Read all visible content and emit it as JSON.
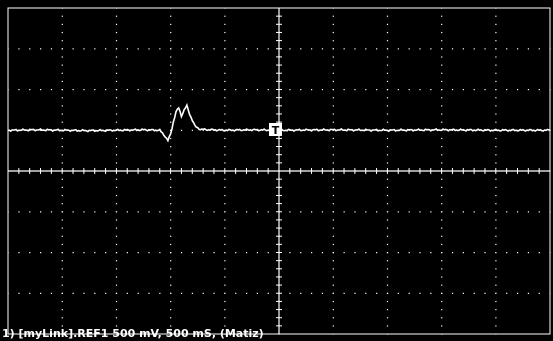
{
  "screen": {
    "background": "#000000",
    "trace_color": "#ffffff",
    "grid_color": "#ffffff",
    "divisions": {
      "horizontal": 10,
      "vertical": 8
    }
  },
  "trigger_marker": {
    "label": "T"
  },
  "status": {
    "text": "1) [myLink].REF1  500 mV,  500 mS, (Matiz)"
  },
  "waveform": {
    "description_units": "divisions",
    "samples": [
      [
        0.0,
        0.0
      ],
      [
        0.5,
        0.01
      ],
      [
        1.0,
        0.0
      ],
      [
        1.5,
        -0.01
      ],
      [
        2.0,
        0.0
      ],
      [
        2.5,
        0.01
      ],
      [
        2.8,
        0.0
      ],
      [
        2.9,
        -0.15
      ],
      [
        2.95,
        -0.25
      ],
      [
        3.0,
        -0.1
      ],
      [
        3.05,
        0.2
      ],
      [
        3.1,
        0.45
      ],
      [
        3.15,
        0.55
      ],
      [
        3.2,
        0.35
      ],
      [
        3.25,
        0.5
      ],
      [
        3.3,
        0.6
      ],
      [
        3.35,
        0.4
      ],
      [
        3.4,
        0.25
      ],
      [
        3.45,
        0.1
      ],
      [
        3.55,
        0.02
      ],
      [
        4.0,
        0.0
      ],
      [
        4.5,
        0.01
      ],
      [
        5.0,
        0.0
      ],
      [
        6.0,
        0.01
      ],
      [
        7.0,
        0.0
      ],
      [
        8.0,
        0.01
      ],
      [
        9.0,
        0.0
      ],
      [
        10.0,
        0.0
      ]
    ]
  }
}
